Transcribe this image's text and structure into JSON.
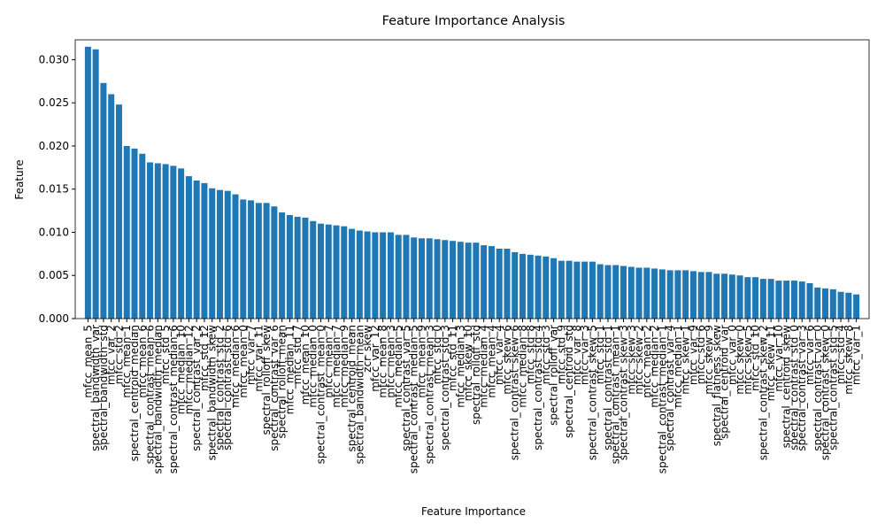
{
  "chart_data": {
    "type": "bar",
    "title": "Feature Importance Analysis",
    "xlabel": "Feature Importance",
    "ylabel": "Feature",
    "color": "#1f77b4",
    "categories": [
      "mfcc_mean_5",
      "spectral_bandwidth_var",
      "spectral_bandwidth_std",
      "mfcc_var_2",
      "mfcc_std_2",
      "mfcc_mean_1",
      "spectral_centroid_median",
      "mfcc_mean_6",
      "spectral_contrast_mean_6",
      "spectral_bandwidth_median",
      "mfcc_std_5",
      "spectral_contrast_median_6",
      "mfcc_median_10",
      "mfcc_median_12",
      "spectral_contrast_var_2",
      "mfcc_std_12",
      "spectral_bandwidth_skew",
      "spectral_contrast_std_2",
      "spectral_contrast_std_6",
      "mfcc_median_6",
      "mfcc_mean_0",
      "mfcc_var_7",
      "mfcc_var_11",
      "spectral_rolloff_skew",
      "spectral_contrast_var_6",
      "spectral_rolloff_mean",
      "mfcc_median_11",
      "mfcc_std_7",
      "mfcc_mean_10",
      "mfcc_median_0",
      "spectral_contrast_mean_0",
      "mfcc_mean_7",
      "mfcc_median_7",
      "mfcc_median_9",
      "spectral_centroid_mean",
      "spectral_bandwidth_mean",
      "zcr_skew",
      "mfcc_var_12",
      "mfcc_mean_8",
      "mfcc_mean_3",
      "mfcc_median_5",
      "spectral_contrast_var_5",
      "spectral_contrast_median_5",
      "mfcc_mean_9",
      "spectral_contrast_mean_3",
      "mfcc_std_0",
      "spectral_contrast_std_3",
      "mfcc_std_11",
      "mfcc_median_3",
      "mfcc_skew_10",
      "spectral_rolloff_std",
      "mfcc_median_4",
      "mfcc_mean_4",
      "mfcc_var_4",
      "mfcc_skew_6",
      "spectral_contrast_skew_6",
      "mfcc_median_8",
      "mfcc_std_8",
      "spectral_contrast_std_4",
      "mfcc_std_3",
      "spectral_rolloff_var",
      "mfcc_std_9",
      "spectral_centroid_std",
      "mfcc_var_8",
      "mfcc_var_3",
      "spectral_contrast_skew_5",
      "mfcc_std_1",
      "spectral_contrast_std_1",
      "spectral_contrast_mean_1",
      "spectral_contrast_skew_3",
      "mfcc_skew_3",
      "mfcc_skew_2",
      "mfcc_mean_2",
      "mfcc_median_2",
      "spectral_contrast_median_1",
      "spectral_contrast_var_4",
      "mfcc_median_1",
      "mfcc_skew_1",
      "mfcc_var_9",
      "mfcc_std_6",
      "mfcc_skew_9",
      "spectral_flatness_skew",
      "spectral_centroid_var",
      "mfcc_var_0",
      "mfcc_skew_0",
      "mfcc_skew_5",
      "mfcc_std_10",
      "spectral_contrast_skew_2",
      "mfcc_skew_11",
      "mfcc_var_10",
      "spectral_centroid_skew",
      "spectral_contrast_std_0",
      "spectral_contrast_var_3",
      "mfcc_var_6",
      "spectral_contrast_var_0",
      "spectral_contrast_skew_0",
      "spectral_contrast_std_5",
      "mfcc_std_4",
      "mfcc_skew_8",
      "mfcc_var_1"
    ],
    "values": [
      0.0315,
      0.0312,
      0.0273,
      0.026,
      0.0248,
      0.02,
      0.0197,
      0.0191,
      0.0181,
      0.018,
      0.0179,
      0.0177,
      0.0174,
      0.0165,
      0.016,
      0.0157,
      0.0151,
      0.0149,
      0.0148,
      0.0144,
      0.0138,
      0.0137,
      0.0134,
      0.0134,
      0.013,
      0.0123,
      0.012,
      0.0118,
      0.0117,
      0.0113,
      0.011,
      0.0109,
      0.0108,
      0.0107,
      0.0104,
      0.0102,
      0.0101,
      0.01,
      0.01,
      0.01,
      0.0097,
      0.0097,
      0.0094,
      0.0093,
      0.0093,
      0.0092,
      0.0091,
      0.009,
      0.0089,
      0.0088,
      0.0088,
      0.0085,
      0.0084,
      0.0081,
      0.0081,
      0.0077,
      0.0075,
      0.0074,
      0.0073,
      0.0072,
      0.007,
      0.0067,
      0.0067,
      0.0066,
      0.0066,
      0.0066,
      0.0063,
      0.0062,
      0.0062,
      0.0061,
      0.006,
      0.0059,
      0.0059,
      0.0058,
      0.0057,
      0.0056,
      0.0056,
      0.0056,
      0.0055,
      0.0054,
      0.0054,
      0.0052,
      0.0052,
      0.0051,
      0.005,
      0.0048,
      0.0048,
      0.0046,
      0.0046,
      0.0044,
      0.0044,
      0.0044,
      0.0043,
      0.0041,
      0.0036,
      0.0035,
      0.0034,
      0.0031,
      0.003,
      0.0028
    ],
    "ylim": [
      0,
      0.0323
    ],
    "yticks": [
      {
        "value": 0,
        "label": "0.000"
      },
      {
        "value": 0.005,
        "label": "0.005"
      },
      {
        "value": 0.01,
        "label": "0.010"
      },
      {
        "value": 0.015,
        "label": "0.015"
      },
      {
        "value": 0.02,
        "label": "0.020"
      },
      {
        "value": 0.025,
        "label": "0.025"
      },
      {
        "value": 0.03,
        "label": "0.030"
      }
    ]
  }
}
